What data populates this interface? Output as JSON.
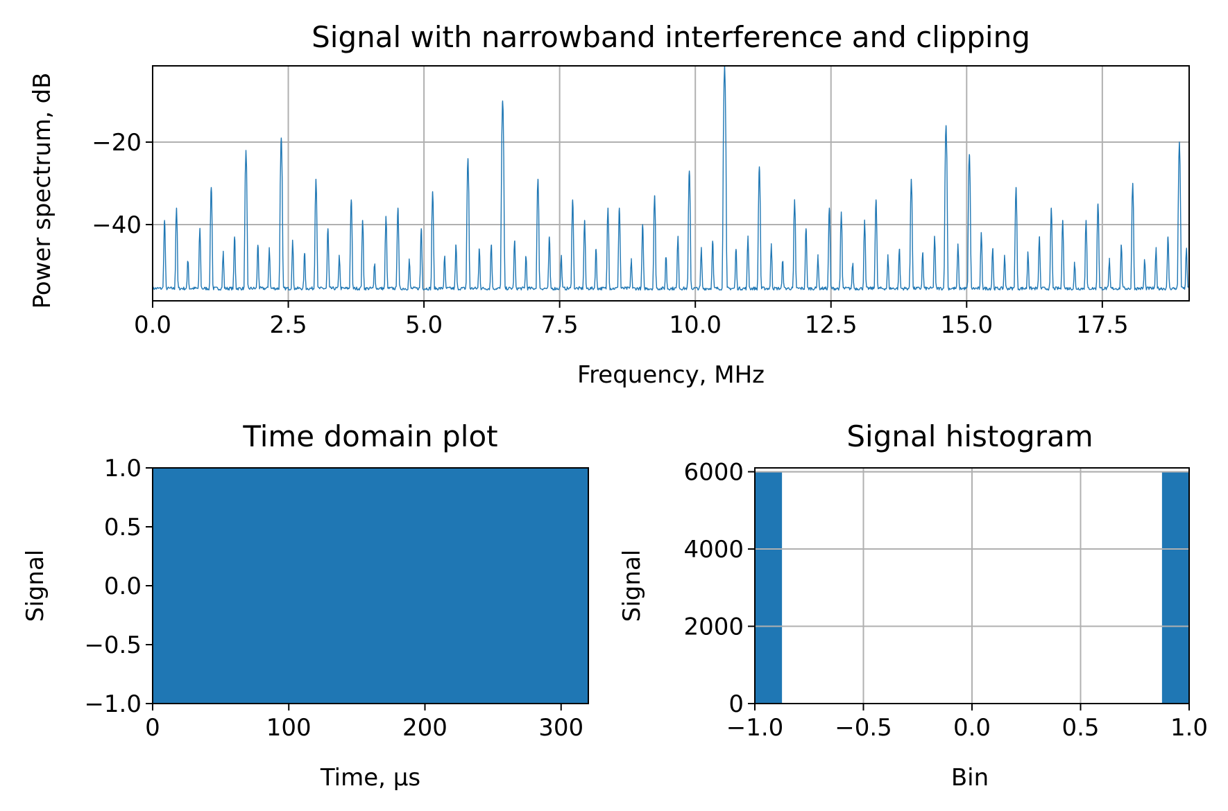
{
  "chart_data": [
    {
      "type": "line",
      "title": "Signal with narrowband interference and clipping",
      "xlabel": "Frequency, MHz",
      "ylabel": "Power spectrum, dB",
      "xlim": [
        0,
        19.1
      ],
      "ylim": [
        -58.5,
        -1.5
      ],
      "xticks": [
        0.0,
        2.5,
        5.0,
        7.5,
        10.0,
        12.5,
        15.0,
        17.5
      ],
      "xtick_labels": [
        "0.0",
        "2.5",
        "5.0",
        "7.5",
        "10.0",
        "12.5",
        "15.0",
        "17.5"
      ],
      "yticks": [
        -20,
        -40
      ],
      "ytick_labels": [
        "−20",
        "−40"
      ],
      "grid": true,
      "color": "#1f77b4",
      "noise_floor_db": -55.5,
      "peaks": [
        {
          "f": 0.22,
          "db": -39
        },
        {
          "f": 0.44,
          "db": -36
        },
        {
          "f": 0.65,
          "db": -49
        },
        {
          "f": 0.87,
          "db": -41
        },
        {
          "f": 1.08,
          "db": -31
        },
        {
          "f": 1.3,
          "db": -47
        },
        {
          "f": 1.51,
          "db": -43
        },
        {
          "f": 1.72,
          "db": -22
        },
        {
          "f": 1.94,
          "db": -45
        },
        {
          "f": 2.15,
          "db": -46
        },
        {
          "f": 2.37,
          "db": -19
        },
        {
          "f": 2.58,
          "db": -44
        },
        {
          "f": 2.8,
          "db": -47
        },
        {
          "f": 3.01,
          "db": -29
        },
        {
          "f": 3.23,
          "db": -41
        },
        {
          "f": 3.44,
          "db": -48
        },
        {
          "f": 3.66,
          "db": -34
        },
        {
          "f": 3.87,
          "db": -39
        },
        {
          "f": 4.09,
          "db": -50
        },
        {
          "f": 4.3,
          "db": -38
        },
        {
          "f": 4.52,
          "db": -36
        },
        {
          "f": 4.73,
          "db": -49
        },
        {
          "f": 4.95,
          "db": -41
        },
        {
          "f": 5.16,
          "db": -32
        },
        {
          "f": 5.38,
          "db": -48
        },
        {
          "f": 5.59,
          "db": -45
        },
        {
          "f": 5.81,
          "db": -24
        },
        {
          "f": 6.02,
          "db": -46
        },
        {
          "f": 6.24,
          "db": -45
        },
        {
          "f": 6.45,
          "db": -10
        },
        {
          "f": 6.67,
          "db": -44
        },
        {
          "f": 6.88,
          "db": -48
        },
        {
          "f": 7.1,
          "db": -29
        },
        {
          "f": 7.31,
          "db": -43
        },
        {
          "f": 7.53,
          "db": -48
        },
        {
          "f": 7.74,
          "db": -34
        },
        {
          "f": 7.96,
          "db": -39
        },
        {
          "f": 8.17,
          "db": -46
        },
        {
          "f": 8.39,
          "db": -36
        },
        {
          "f": 8.6,
          "db": -36
        },
        {
          "f": 8.82,
          "db": -49
        },
        {
          "f": 9.03,
          "db": -40
        },
        {
          "f": 9.25,
          "db": -33
        },
        {
          "f": 9.46,
          "db": -48
        },
        {
          "f": 9.68,
          "db": -43
        },
        {
          "f": 9.89,
          "db": -27
        },
        {
          "f": 10.11,
          "db": -46
        },
        {
          "f": 10.32,
          "db": -44
        },
        {
          "f": 10.54,
          "db": -1.5
        },
        {
          "f": 10.75,
          "db": -46
        },
        {
          "f": 10.97,
          "db": -43
        },
        {
          "f": 11.18,
          "db": -26
        },
        {
          "f": 11.4,
          "db": -45
        },
        {
          "f": 11.61,
          "db": -49
        },
        {
          "f": 11.83,
          "db": -34
        },
        {
          "f": 12.04,
          "db": -41
        },
        {
          "f": 12.26,
          "db": -48
        },
        {
          "f": 12.47,
          "db": -36
        },
        {
          "f": 12.69,
          "db": -37
        },
        {
          "f": 12.9,
          "db": -50
        },
        {
          "f": 13.12,
          "db": -39
        },
        {
          "f": 13.33,
          "db": -34
        },
        {
          "f": 13.55,
          "db": -48
        },
        {
          "f": 13.76,
          "db": -46
        },
        {
          "f": 13.98,
          "db": -29
        },
        {
          "f": 14.19,
          "db": -47
        },
        {
          "f": 14.41,
          "db": -43
        },
        {
          "f": 14.62,
          "db": -16
        },
        {
          "f": 14.84,
          "db": -45
        },
        {
          "f": 15.05,
          "db": -23
        },
        {
          "f": 15.27,
          "db": -42
        },
        {
          "f": 15.48,
          "db": -46
        },
        {
          "f": 15.7,
          "db": -48
        },
        {
          "f": 15.91,
          "db": -31
        },
        {
          "f": 16.13,
          "db": -47
        },
        {
          "f": 16.34,
          "db": -43
        },
        {
          "f": 16.56,
          "db": -36
        },
        {
          "f": 16.77,
          "db": -39
        },
        {
          "f": 16.99,
          "db": -50
        },
        {
          "f": 17.2,
          "db": -39
        },
        {
          "f": 17.42,
          "db": -35
        },
        {
          "f": 17.63,
          "db": -49
        },
        {
          "f": 17.85,
          "db": -45
        },
        {
          "f": 18.06,
          "db": -30
        },
        {
          "f": 18.28,
          "db": -49
        },
        {
          "f": 18.49,
          "db": -46
        },
        {
          "f": 18.71,
          "db": -43
        },
        {
          "f": 18.92,
          "db": -20
        },
        {
          "f": 19.05,
          "db": -46
        }
      ]
    },
    {
      "type": "area",
      "title": "Time domain plot",
      "xlabel": "Time, µs",
      "ylabel": "Signal",
      "xlim": [
        0,
        320
      ],
      "ylim": [
        -1.0,
        1.0
      ],
      "xticks": [
        0,
        100,
        200,
        300
      ],
      "xtick_labels": [
        "0",
        "100",
        "200",
        "300"
      ],
      "yticks": [
        1.0,
        0.5,
        0.0,
        -0.5,
        -1.0
      ],
      "ytick_labels": [
        "1.0",
        "0.5",
        "0.0",
        "−0.5",
        "−1.0"
      ],
      "grid": false,
      "color": "#1f77b4",
      "signal_range": [
        -1.0,
        1.0
      ],
      "time_range": [
        0,
        320
      ]
    },
    {
      "type": "bar",
      "title": "Signal histogram",
      "xlabel": "Bin",
      "ylabel": "Signal",
      "xlim": [
        -1.0,
        1.0
      ],
      "ylim": [
        0,
        6100
      ],
      "xticks": [
        -1.0,
        -0.5,
        0.0,
        0.5,
        1.0
      ],
      "xtick_labels": [
        "−1.0",
        "−0.5",
        "0.0",
        "0.5",
        "1.0"
      ],
      "yticks": [
        0,
        2000,
        4000,
        6000
      ],
      "ytick_labels": [
        "0",
        "2000",
        "4000",
        "6000"
      ],
      "grid": true,
      "color": "#1f77b4",
      "bins": [
        {
          "x0": -1.0,
          "x1": -0.875,
          "count": 6000
        },
        {
          "x0": 0.875,
          "x1": 1.0,
          "count": 6000
        }
      ]
    }
  ]
}
